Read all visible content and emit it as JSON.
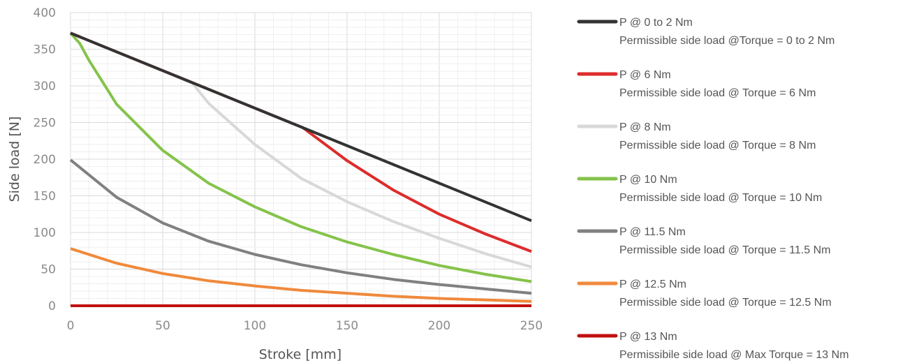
{
  "chart_data": {
    "type": "line",
    "title": "",
    "xlabel": "Stroke [mm]",
    "ylabel": "Side load [N]",
    "xlim": [
      0,
      250
    ],
    "ylim": [
      0,
      400
    ],
    "x_ticks": [
      0,
      50,
      100,
      150,
      200,
      250
    ],
    "y_ticks": [
      0,
      50,
      100,
      150,
      200,
      250,
      300,
      350,
      400
    ],
    "grid": true,
    "legend_position": "right",
    "series": [
      {
        "name": "P @ 0 to 2 Nm",
        "description": "Permissible side load @Torque = 0 to 2 Nm",
        "color": "#333333",
        "x": [
          0,
          250
        ],
        "y": [
          372,
          116
        ]
      },
      {
        "name": "P @ 6 Nm",
        "description": "Permissible side load @ Torque = 6 Nm",
        "color": "#dd2c2c",
        "x": [
          0,
          126,
          150,
          175,
          200,
          225,
          250
        ],
        "y": [
          372,
          243,
          198,
          158,
          125,
          98,
          74
        ]
      },
      {
        "name": "P @ 8 Nm",
        "description": "Permissible side load @ Torque = 8 Nm",
        "color": "#d8d8d8",
        "x": [
          0,
          66,
          75,
          100,
          125,
          150,
          175,
          200,
          225,
          250
        ],
        "y": [
          372,
          304,
          276,
          220,
          174,
          142,
          115,
          92,
          71,
          53
        ]
      },
      {
        "name": "P @ 10 Nm",
        "description": "Permissible side load @ Torque = 10 Nm",
        "color": "#85c34b",
        "x": [
          0,
          5,
          10,
          25,
          50,
          75,
          100,
          125,
          150,
          175,
          200,
          225,
          250
        ],
        "y": [
          372,
          358,
          335,
          275,
          212,
          167,
          135,
          108,
          87,
          70,
          55,
          43,
          33
        ]
      },
      {
        "name": "P @ 11.5 Nm",
        "description": "Permissible side load @ Torque = 11.5 Nm",
        "color": "#808080",
        "x": [
          0,
          25,
          50,
          75,
          100,
          125,
          150,
          175,
          200,
          225,
          250
        ],
        "y": [
          199,
          148,
          113,
          88,
          70,
          56,
          45,
          36,
          29,
          23,
          17
        ]
      },
      {
        "name": "P @ 12.5 Nm",
        "description": "Permissible side load @ Torque = 12.5 Nm",
        "color": "#ef8a3c",
        "x": [
          0,
          25,
          50,
          75,
          100,
          125,
          150,
          175,
          200,
          225,
          250
        ],
        "y": [
          78,
          58,
          44,
          34,
          27,
          21,
          17,
          13,
          10,
          8,
          6
        ]
      },
      {
        "name": "P @ 13 Nm",
        "description": "Permissibile side load @ Max Torque = 13 Nm",
        "color": "#c0100f",
        "x": [
          0,
          250
        ],
        "y": [
          0,
          0
        ]
      }
    ]
  }
}
